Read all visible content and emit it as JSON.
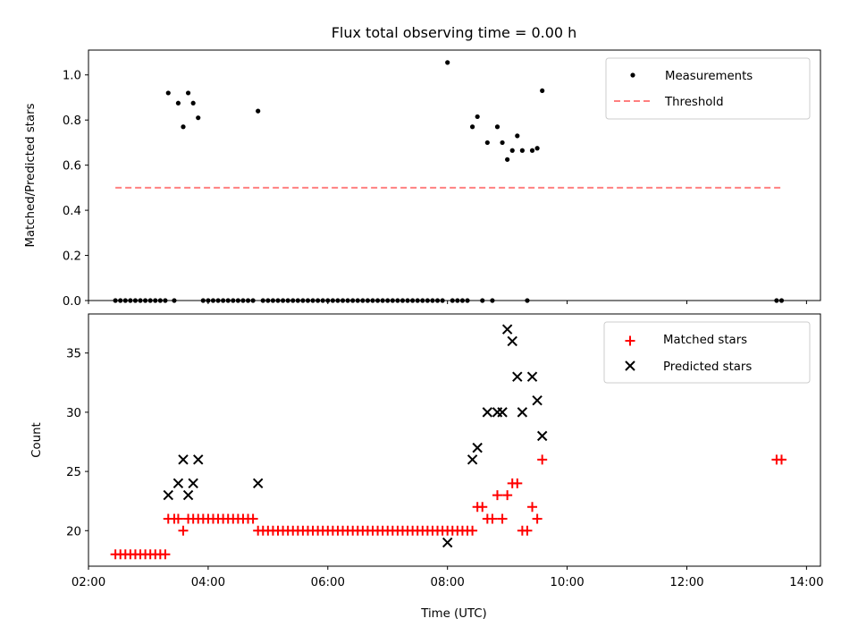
{
  "title": "Flux total observing time = 0.00 h",
  "xlabel": "Time (UTC)",
  "x_ticks": [
    "02:00",
    "04:00",
    "06:00",
    "08:00",
    "10:00",
    "12:00",
    "14:00"
  ],
  "colors": {
    "measurements": "#000000",
    "threshold": "#ff8080",
    "matched": "#ff0000",
    "predicted": "#000000"
  },
  "chart_data": [
    {
      "type": "scatter",
      "ylabel": "Matched/Predicted stars",
      "xlim": [
        "02:00",
        "14:14"
      ],
      "ylim": [
        0,
        1.11
      ],
      "y_ticks": [
        "0.0",
        "0.2",
        "0.4",
        "0.6",
        "0.8",
        "1.0"
      ],
      "legend_position": "upper-right",
      "series": [
        {
          "name": "Measurements",
          "marker": "dot",
          "color": "#000000",
          "points": [
            [
              "02:27",
              0
            ],
            [
              "02:32",
              0
            ],
            [
              "02:37",
              0
            ],
            [
              "02:42",
              0
            ],
            [
              "02:47",
              0
            ],
            [
              "02:52",
              0
            ],
            [
              "02:57",
              0
            ],
            [
              "03:02",
              0
            ],
            [
              "03:07",
              0
            ],
            [
              "03:12",
              0
            ],
            [
              "03:17",
              0
            ],
            [
              "03:20",
              0.92
            ],
            [
              "03:26",
              0
            ],
            [
              "03:30",
              0.875
            ],
            [
              "03:35",
              0.77
            ],
            [
              "03:40",
              0.92
            ],
            [
              "03:45",
              0.875
            ],
            [
              "03:50",
              0.81
            ],
            [
              "03:55",
              0
            ],
            [
              "04:00",
              0
            ],
            [
              "04:05",
              0
            ],
            [
              "04:10",
              0
            ],
            [
              "04:15",
              0
            ],
            [
              "04:20",
              0
            ],
            [
              "04:25",
              0
            ],
            [
              "04:30",
              0
            ],
            [
              "04:35",
              0
            ],
            [
              "04:40",
              0
            ],
            [
              "04:45",
              0
            ],
            [
              "04:50",
              0.84
            ],
            [
              "04:55",
              0
            ],
            [
              "05:00",
              0
            ],
            [
              "05:05",
              0
            ],
            [
              "05:10",
              0
            ],
            [
              "05:15",
              0
            ],
            [
              "05:20",
              0
            ],
            [
              "05:25",
              0
            ],
            [
              "05:30",
              0
            ],
            [
              "05:35",
              0
            ],
            [
              "05:40",
              0
            ],
            [
              "05:45",
              0
            ],
            [
              "05:50",
              0
            ],
            [
              "05:55",
              0
            ],
            [
              "06:00",
              0
            ],
            [
              "06:05",
              0
            ],
            [
              "06:10",
              0
            ],
            [
              "06:15",
              0
            ],
            [
              "06:20",
              0
            ],
            [
              "06:25",
              0
            ],
            [
              "06:30",
              0
            ],
            [
              "06:35",
              0
            ],
            [
              "06:40",
              0
            ],
            [
              "06:45",
              0
            ],
            [
              "06:50",
              0
            ],
            [
              "06:55",
              0
            ],
            [
              "07:00",
              0
            ],
            [
              "07:05",
              0
            ],
            [
              "07:10",
              0
            ],
            [
              "07:15",
              0
            ],
            [
              "07:20",
              0
            ],
            [
              "07:25",
              0
            ],
            [
              "07:30",
              0
            ],
            [
              "07:35",
              0
            ],
            [
              "07:40",
              0
            ],
            [
              "07:45",
              0
            ],
            [
              "07:50",
              0
            ],
            [
              "07:55",
              0
            ],
            [
              "08:00",
              1.055
            ],
            [
              "08:05",
              0
            ],
            [
              "08:10",
              0
            ],
            [
              "08:15",
              0
            ],
            [
              "08:20",
              0
            ],
            [
              "08:25",
              0.77
            ],
            [
              "08:30",
              0.815
            ],
            [
              "08:35",
              0
            ],
            [
              "08:40",
              0.7
            ],
            [
              "08:45",
              0
            ],
            [
              "08:50",
              0.77
            ],
            [
              "08:55",
              0.7
            ],
            [
              "09:00",
              0.625
            ],
            [
              "09:05",
              0.665
            ],
            [
              "09:10",
              0.73
            ],
            [
              "09:15",
              0.665
            ],
            [
              "09:20",
              0
            ],
            [
              "09:25",
              0.665
            ],
            [
              "09:30",
              0.675
            ],
            [
              "09:35",
              0.93
            ],
            [
              "13:30",
              0
            ],
            [
              "13:35",
              0
            ]
          ]
        },
        {
          "name": "Threshold",
          "marker": "dashed-line",
          "color": "#ff8080",
          "points": [
            [
              "02:27",
              0.5
            ],
            [
              "13:35",
              0.5
            ]
          ]
        }
      ]
    },
    {
      "type": "scatter",
      "ylabel": "Count",
      "xlim": [
        "02:00",
        "14:14"
      ],
      "ylim": [
        17,
        38.3
      ],
      "y_ticks": [
        "20",
        "25",
        "30",
        "35"
      ],
      "legend_position": "upper-right",
      "series": [
        {
          "name": "Matched stars",
          "marker": "plus",
          "color": "#ff0000",
          "points": [
            [
              "02:27",
              18
            ],
            [
              "02:32",
              18
            ],
            [
              "02:37",
              18
            ],
            [
              "02:42",
              18
            ],
            [
              "02:47",
              18
            ],
            [
              "02:52",
              18
            ],
            [
              "02:57",
              18
            ],
            [
              "03:02",
              18
            ],
            [
              "03:07",
              18
            ],
            [
              "03:12",
              18
            ],
            [
              "03:17",
              18
            ],
            [
              "03:20",
              21
            ],
            [
              "03:26",
              21
            ],
            [
              "03:30",
              21
            ],
            [
              "03:35",
              20
            ],
            [
              "03:40",
              21
            ],
            [
              "03:45",
              21
            ],
            [
              "03:50",
              21
            ],
            [
              "03:55",
              21
            ],
            [
              "04:00",
              21
            ],
            [
              "04:05",
              21
            ],
            [
              "04:10",
              21
            ],
            [
              "04:15",
              21
            ],
            [
              "04:20",
              21
            ],
            [
              "04:25",
              21
            ],
            [
              "04:30",
              21
            ],
            [
              "04:35",
              21
            ],
            [
              "04:40",
              21
            ],
            [
              "04:45",
              21
            ],
            [
              "04:50",
              20
            ],
            [
              "04:55",
              20
            ],
            [
              "05:00",
              20
            ],
            [
              "05:05",
              20
            ],
            [
              "05:10",
              20
            ],
            [
              "05:15",
              20
            ],
            [
              "05:20",
              20
            ],
            [
              "05:25",
              20
            ],
            [
              "05:30",
              20
            ],
            [
              "05:35",
              20
            ],
            [
              "05:40",
              20
            ],
            [
              "05:45",
              20
            ],
            [
              "05:50",
              20
            ],
            [
              "05:55",
              20
            ],
            [
              "06:00",
              20
            ],
            [
              "06:05",
              20
            ],
            [
              "06:10",
              20
            ],
            [
              "06:15",
              20
            ],
            [
              "06:20",
              20
            ],
            [
              "06:25",
              20
            ],
            [
              "06:30",
              20
            ],
            [
              "06:35",
              20
            ],
            [
              "06:40",
              20
            ],
            [
              "06:45",
              20
            ],
            [
              "06:50",
              20
            ],
            [
              "06:55",
              20
            ],
            [
              "07:00",
              20
            ],
            [
              "07:05",
              20
            ],
            [
              "07:10",
              20
            ],
            [
              "07:15",
              20
            ],
            [
              "07:20",
              20
            ],
            [
              "07:25",
              20
            ],
            [
              "07:30",
              20
            ],
            [
              "07:35",
              20
            ],
            [
              "07:40",
              20
            ],
            [
              "07:45",
              20
            ],
            [
              "07:50",
              20
            ],
            [
              "07:55",
              20
            ],
            [
              "08:00",
              20
            ],
            [
              "08:05",
              20
            ],
            [
              "08:10",
              20
            ],
            [
              "08:15",
              20
            ],
            [
              "08:20",
              20
            ],
            [
              "08:25",
              20
            ],
            [
              "08:30",
              22
            ],
            [
              "08:35",
              22
            ],
            [
              "08:40",
              21
            ],
            [
              "08:45",
              21
            ],
            [
              "08:50",
              23
            ],
            [
              "08:55",
              21
            ],
            [
              "09:00",
              23
            ],
            [
              "09:05",
              24
            ],
            [
              "09:10",
              24
            ],
            [
              "09:15",
              20
            ],
            [
              "09:20",
              20
            ],
            [
              "09:25",
              22
            ],
            [
              "09:30",
              21
            ],
            [
              "09:35",
              26
            ],
            [
              "13:30",
              26
            ],
            [
              "13:35",
              26
            ]
          ]
        },
        {
          "name": "Predicted stars",
          "marker": "x",
          "color": "#000000",
          "points": [
            [
              "03:20",
              23
            ],
            [
              "03:30",
              24
            ],
            [
              "03:35",
              26
            ],
            [
              "03:40",
              23
            ],
            [
              "03:45",
              24
            ],
            [
              "03:50",
              26
            ],
            [
              "04:50",
              24
            ],
            [
              "08:00",
              19
            ],
            [
              "08:25",
              26
            ],
            [
              "08:30",
              27
            ],
            [
              "08:40",
              30
            ],
            [
              "08:50",
              30
            ],
            [
              "08:55",
              30
            ],
            [
              "09:00",
              37
            ],
            [
              "09:05",
              36
            ],
            [
              "09:10",
              33
            ],
            [
              "09:15",
              30
            ],
            [
              "09:25",
              33
            ],
            [
              "09:30",
              31
            ],
            [
              "09:35",
              28
            ]
          ]
        }
      ]
    }
  ]
}
